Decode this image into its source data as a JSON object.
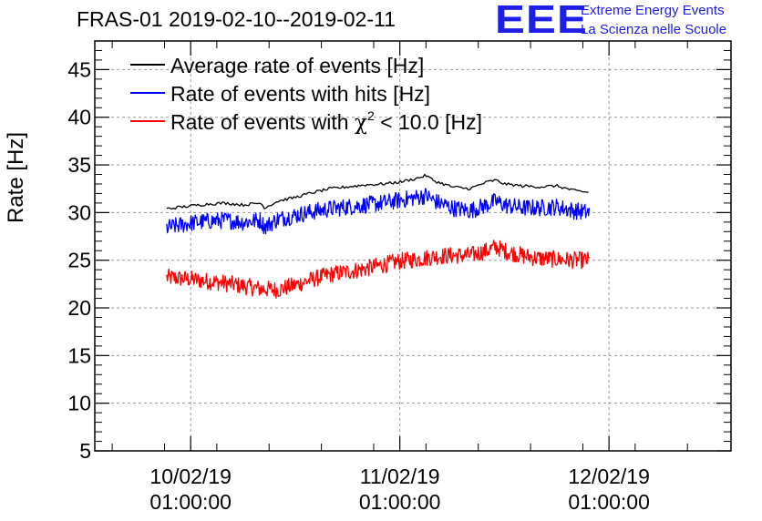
{
  "title": "FRAS-01 2019-02-10--2019-02-11",
  "logo": {
    "text": "EEE",
    "line1": "Extreme Energy Events",
    "line2": "La Scienza nelle Scuole",
    "color": "#1e1ee6"
  },
  "chart_data": {
    "type": "line",
    "title": "FRAS-01 2019-02-10--2019-02-11",
    "xlabel": "",
    "ylabel": "Rate [Hz]",
    "ylim": [
      5,
      48
    ],
    "y_ticks": [
      5,
      10,
      15,
      20,
      25,
      30,
      35,
      40,
      45
    ],
    "xlim_hours": [
      -11,
      62
    ],
    "x_ticks": [
      {
        "hour": 0,
        "date": "10/02/19",
        "time": "01:00:00"
      },
      {
        "hour": 24,
        "date": "11/02/19",
        "time": "01:00:00"
      },
      {
        "hour": 48,
        "date": "12/02/19",
        "time": "01:00:00"
      }
    ],
    "grid": true,
    "legend": {
      "placement": "top-left",
      "entries": [
        {
          "label": "Average rate of events [Hz]",
          "color": "#000000"
        },
        {
          "label": "Rate of events with hits [Hz]",
          "color": "#0000ff"
        },
        {
          "label_pre": "Rate of events with ",
          "chi": "χ",
          "sup": "2",
          "label_post": " < 10.0 [Hz]",
          "color": "#ff0000"
        }
      ]
    },
    "series": [
      {
        "name": "Average rate of events [Hz]",
        "color": "#000000",
        "noise": 0.15,
        "x": [
          -2.75,
          0,
          2,
          4,
          6,
          8,
          8.5,
          10,
          12,
          14,
          16,
          18,
          20,
          22,
          24,
          26,
          27,
          28,
          30,
          32,
          34,
          35,
          36,
          38,
          40,
          42,
          44,
          45.8
        ],
        "y": [
          30.4,
          30.7,
          30.9,
          31.0,
          30.8,
          31.0,
          30.5,
          31.2,
          31.6,
          32.1,
          32.5,
          32.7,
          32.9,
          33.0,
          33.2,
          33.6,
          33.9,
          33.3,
          32.7,
          32.5,
          33.2,
          33.4,
          33.0,
          32.8,
          32.7,
          32.8,
          32.3,
          32.1
        ]
      },
      {
        "name": "Rate of events with hits [Hz]",
        "color": "#0000ff",
        "noise": 0.9,
        "x": [
          -2.75,
          0,
          2,
          4,
          6,
          8,
          8.5,
          10,
          12,
          14,
          16,
          18,
          20,
          22,
          24,
          26,
          27,
          28,
          30,
          32,
          34,
          35,
          36,
          38,
          40,
          42,
          44,
          45.8
        ],
        "y": [
          28.4,
          28.9,
          29.1,
          29.2,
          29.0,
          29.2,
          28.5,
          29.3,
          29.7,
          30.1,
          30.4,
          30.6,
          30.8,
          31.0,
          31.3,
          31.6,
          31.8,
          31.2,
          30.5,
          30.2,
          30.8,
          31.2,
          30.8,
          30.5,
          30.5,
          30.6,
          30.2,
          30.0
        ]
      },
      {
        "name": "Rate of events with χ2 < 10.0 [Hz]",
        "color": "#ff0000",
        "noise": 0.9,
        "x": [
          -2.75,
          0,
          2,
          4,
          6,
          8,
          10,
          12,
          14,
          16,
          18,
          20,
          22,
          24,
          26,
          28,
          30,
          32,
          34,
          35,
          36,
          38,
          40,
          42,
          44,
          45.8
        ],
        "y": [
          23.2,
          23.0,
          22.8,
          22.6,
          22.3,
          22.0,
          21.9,
          22.4,
          23.0,
          23.5,
          23.8,
          24.1,
          24.5,
          24.9,
          25.1,
          25.4,
          25.5,
          25.5,
          26.0,
          26.4,
          26.0,
          25.5,
          25.2,
          25.1,
          25.0,
          25.0
        ]
      }
    ]
  }
}
